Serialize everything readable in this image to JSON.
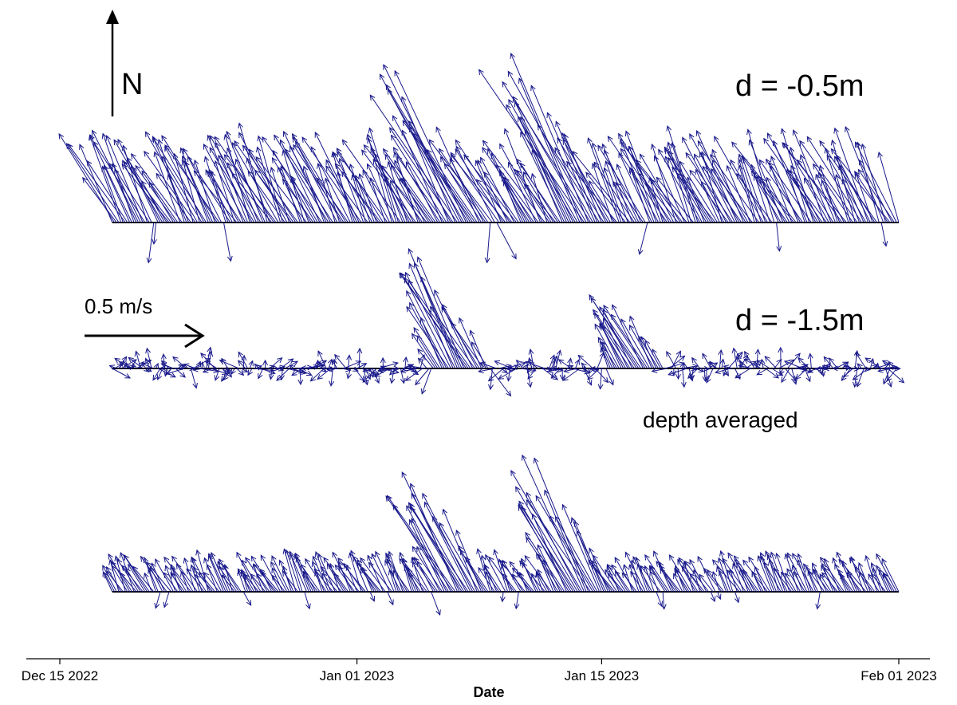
{
  "chart_data": {
    "type": "stick-plot (current vectors)",
    "xlabel": "Date",
    "x_ticks": [
      "Dec 15 2022",
      "Jan 01 2023",
      "Jan 15 2023",
      "Feb 01 2023"
    ],
    "x_tick_dates": [
      "2022-12-15",
      "2023-01-01",
      "2023-01-15",
      "2023-02-01"
    ],
    "time_range": [
      "2022-12-18",
      "2023-02-01"
    ],
    "north_label": "N",
    "scale_arrow": {
      "label": "0.5 m/s",
      "speed_m_s": 0.5
    },
    "panels": [
      {
        "label": "d = -0.5m",
        "baseline_time_range": [
          "2022-12-18",
          "2023-02-01"
        ],
        "typical": {
          "speed_m_s": 0.35,
          "direction": "north-northwest"
        },
        "peak_events": [
          {
            "date": "2023-01-07",
            "speed_m_s": 0.72,
            "direction": "north-northwest"
          },
          {
            "date": "2023-01-14",
            "speed_m_s": 0.81,
            "direction": "north-northwest"
          }
        ],
        "color": "#1a1a8c"
      },
      {
        "label": "d = -1.5m",
        "baseline_time_range": [
          "2022-12-18",
          "2023-02-01"
        ],
        "typical": {
          "speed_m_s": 0.05,
          "direction": "variable"
        },
        "peak_events": [
          {
            "date": "2023-01-07",
            "speed_m_s": 0.53,
            "direction": "north-northwest"
          },
          {
            "date": "2023-01-17",
            "speed_m_s": 0.35,
            "direction": "north-northwest"
          }
        ],
        "color": "#1a1a8c"
      },
      {
        "label": "depth averaged",
        "baseline_time_range": [
          "2022-12-18",
          "2023-02-01"
        ],
        "typical": {
          "speed_m_s": 0.15,
          "direction": "north-northwest"
        },
        "peak_events": [
          {
            "date": "2023-01-07",
            "speed_m_s": 0.55,
            "direction": "north-northwest"
          },
          {
            "date": "2023-01-14",
            "speed_m_s": 0.6,
            "direction": "north-northwest"
          }
        ],
        "color": "#1a1a8c"
      }
    ]
  }
}
